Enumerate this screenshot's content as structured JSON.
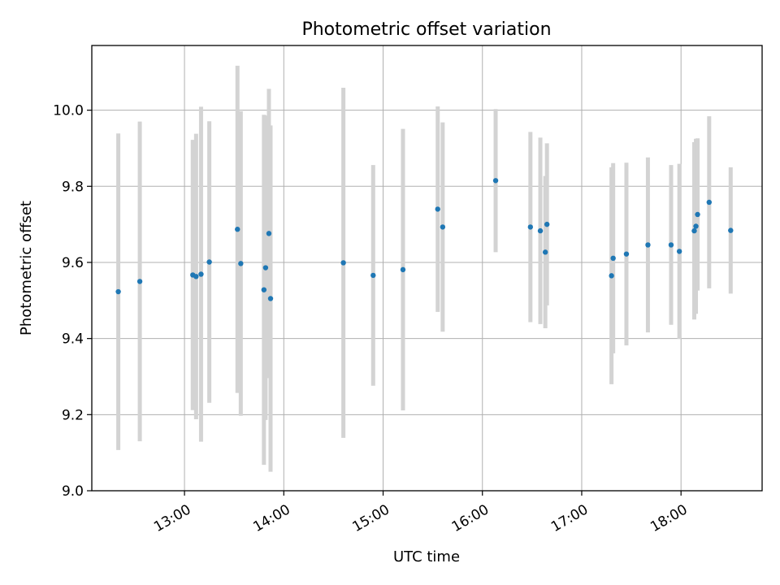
{
  "chart_data": {
    "type": "scatter",
    "title": "Photometric offset variation",
    "xlabel": "UTC time",
    "ylabel": "Photometric offset",
    "xlim": [
      "12:04",
      "18:49"
    ],
    "ylim": [
      9.0,
      10.17
    ],
    "x_ticks": [
      "13:00",
      "14:00",
      "15:00",
      "16:00",
      "17:00",
      "18:00"
    ],
    "y_ticks": [
      "9.0",
      "9.2",
      "9.4",
      "9.6",
      "9.8",
      "10.0"
    ],
    "grid": true,
    "error_bar_color": "#d3d3d3",
    "point_color": "#1f77b4",
    "points": [
      {
        "x": "12:20",
        "y": 9.523,
        "err": 0.416
      },
      {
        "x": "12:33",
        "y": 9.55,
        "err": 0.42
      },
      {
        "x": "13:05",
        "y": 9.567,
        "err": 0.355
      },
      {
        "x": "13:07",
        "y": 9.563,
        "err": 0.375
      },
      {
        "x": "13:10",
        "y": 9.569,
        "err": 0.44
      },
      {
        "x": "13:15",
        "y": 9.601,
        "err": 0.37
      },
      {
        "x": "13:32",
        "y": 9.687,
        "err": 0.43
      },
      {
        "x": "13:34",
        "y": 9.597,
        "err": 0.4
      },
      {
        "x": "13:48",
        "y": 9.528,
        "err": 0.46
      },
      {
        "x": "13:49",
        "y": 9.586,
        "err": 0.4
      },
      {
        "x": "13:51",
        "y": 9.676,
        "err": 0.38
      },
      {
        "x": "13:52",
        "y": 9.505,
        "err": 0.455
      },
      {
        "x": "14:36",
        "y": 9.599,
        "err": 0.46
      },
      {
        "x": "14:54",
        "y": 9.566,
        "err": 0.29
      },
      {
        "x": "15:12",
        "y": 9.581,
        "err": 0.37
      },
      {
        "x": "15:33",
        "y": 9.74,
        "err": 0.27
      },
      {
        "x": "15:36",
        "y": 9.693,
        "err": 0.275
      },
      {
        "x": "16:08",
        "y": 9.815,
        "err": 0.188
      },
      {
        "x": "16:29",
        "y": 9.693,
        "err": 0.25
      },
      {
        "x": "16:35",
        "y": 9.683,
        "err": 0.245
      },
      {
        "x": "16:38",
        "y": 9.627,
        "err": 0.2
      },
      {
        "x": "16:39",
        "y": 9.7,
        "err": 0.213
      },
      {
        "x": "17:18",
        "y": 9.565,
        "err": 0.285
      },
      {
        "x": "17:19",
        "y": 9.611,
        "err": 0.25
      },
      {
        "x": "17:27",
        "y": 9.622,
        "err": 0.24
      },
      {
        "x": "17:40",
        "y": 9.646,
        "err": 0.23
      },
      {
        "x": "17:54",
        "y": 9.646,
        "err": 0.21
      },
      {
        "x": "17:59",
        "y": 9.629,
        "err": 0.23
      },
      {
        "x": "18:08",
        "y": 9.683,
        "err": 0.233
      },
      {
        "x": "18:09",
        "y": 9.695,
        "err": 0.23
      },
      {
        "x": "18:10",
        "y": 9.726,
        "err": 0.2
      },
      {
        "x": "18:17",
        "y": 9.758,
        "err": 0.226
      },
      {
        "x": "18:30",
        "y": 9.684,
        "err": 0.166
      }
    ]
  }
}
